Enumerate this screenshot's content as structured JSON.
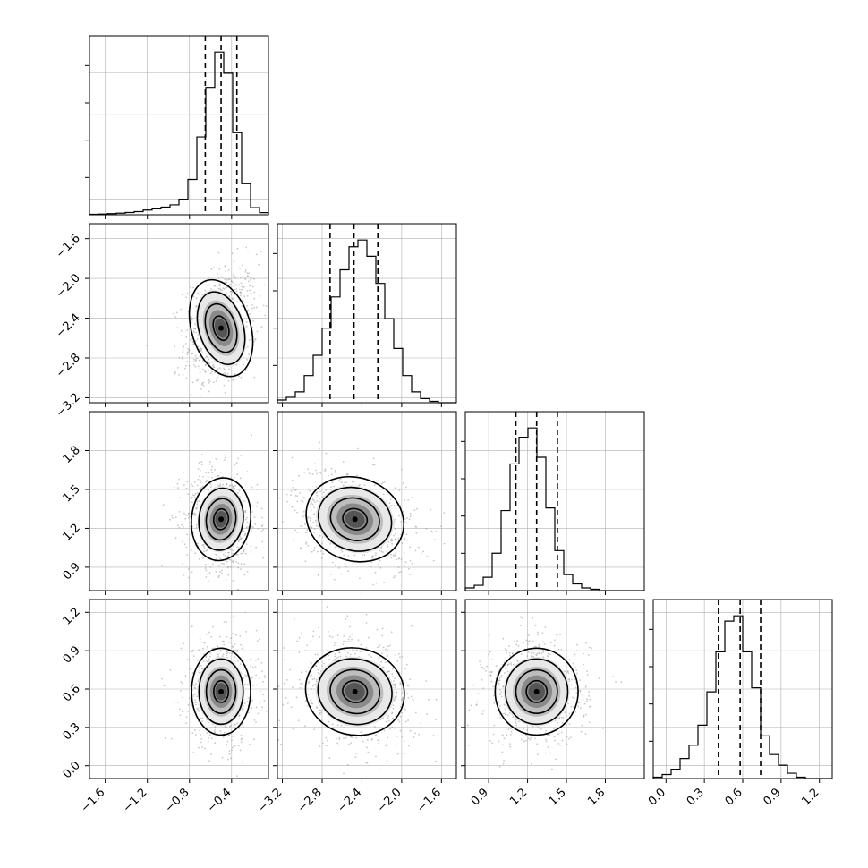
{
  "chart_data": {
    "type": "corner",
    "grid": true,
    "parameters": [
      {
        "range": [
          -1.75,
          -0.05
        ],
        "ticks": [
          "−1.6",
          "−1.2",
          "−0.8",
          "−0.4"
        ],
        "tick_values": [
          -1.6,
          -1.2,
          -0.8,
          -0.4
        ],
        "quantiles": [
          -0.65,
          -0.5,
          -0.35
        ],
        "hist_edges_start": -1.75,
        "hist_bin_width": 0.085,
        "hist_counts": [
          0.3,
          0.5,
          0.8,
          1.1,
          1.6,
          2.2,
          3.3,
          4.2,
          5.4,
          7.0,
          11.0,
          25.0,
          55.0,
          90.0,
          115.0,
          100.0,
          58.0,
          22.0,
          5.0,
          1.5
        ]
      },
      {
        "range": [
          -3.25,
          -1.45
        ],
        "ticks": [
          "−3.2",
          "−2.8",
          "−2.4",
          "−2.0",
          "−1.6"
        ],
        "tick_values": [
          -3.2,
          -2.8,
          -2.4,
          -2.0,
          -1.6
        ],
        "quantiles": [
          -2.72,
          -2.48,
          -2.24
        ],
        "hist_edges_start": -3.25,
        "hist_bin_width": 0.09,
        "hist_counts": [
          2,
          4,
          8,
          20,
          35,
          55,
          78,
          98,
          115,
          120,
          108,
          88,
          62,
          40,
          20,
          8,
          3,
          1,
          0,
          0
        ]
      },
      {
        "range": [
          0.72,
          2.1
        ],
        "ticks": [
          "0.9",
          "1.2",
          "1.5",
          "1.8"
        ],
        "tick_values": [
          0.9,
          1.2,
          1.5,
          1.8
        ],
        "quantiles": [
          1.11,
          1.27,
          1.43
        ],
        "hist_edges_start": 0.72,
        "hist_bin_width": 0.069,
        "hist_counts": [
          2,
          4,
          10,
          28,
          60,
          95,
          115,
          122,
          100,
          62,
          30,
          12,
          5,
          2,
          1,
          0,
          0,
          0,
          0,
          0
        ]
      },
      {
        "range": [
          -0.1,
          1.3
        ],
        "ticks": [
          "0.0",
          "0.3",
          "0.6",
          "0.9",
          "1.2"
        ],
        "tick_values": [
          0.0,
          0.3,
          0.6,
          0.9,
          1.2
        ],
        "quantiles": [
          0.41,
          0.58,
          0.74
        ],
        "hist_edges_start": -0.1,
        "hist_bin_width": 0.07,
        "hist_counts": [
          1,
          3,
          7,
          15,
          25,
          40,
          65,
          95,
          118,
          122,
          95,
          68,
          32,
          18,
          10,
          4,
          1,
          0,
          0,
          0
        ]
      }
    ],
    "pairs": [
      {
        "row": 1,
        "col": 0,
        "mean": [
          -0.5,
          -2.5
        ],
        "sd": [
          0.14,
          0.25
        ],
        "corr": 0.25
      },
      {
        "row": 2,
        "col": 0,
        "mean": [
          -0.5,
          1.27
        ],
        "sd": [
          0.14,
          0.16
        ],
        "corr": -0.1
      },
      {
        "row": 2,
        "col": 1,
        "mean": [
          -2.47,
          1.27
        ],
        "sd": [
          0.25,
          0.16
        ],
        "corr": -0.3
      },
      {
        "row": 3,
        "col": 0,
        "mean": [
          -0.5,
          0.58
        ],
        "sd": [
          0.14,
          0.17
        ],
        "corr": 0.0
      },
      {
        "row": 3,
        "col": 1,
        "mean": [
          -2.47,
          0.58
        ],
        "sd": [
          0.25,
          0.17
        ],
        "corr": -0.2
      },
      {
        "row": 3,
        "col": 2,
        "mean": [
          1.27,
          0.58
        ],
        "sd": [
          0.16,
          0.17
        ],
        "corr": 0.0
      }
    ],
    "colors": {
      "hist": "#000000",
      "points": "#9a9a9a",
      "contour": "#000000",
      "grid": "#b0b0b0"
    }
  }
}
